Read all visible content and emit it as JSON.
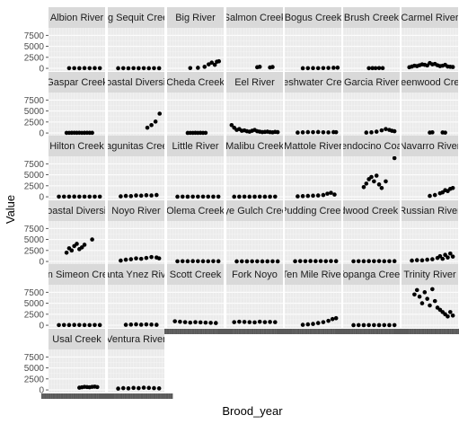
{
  "chart_data": {
    "type": "scatter",
    "facet_layout": "facet_wrap",
    "xlabel": "Brood_year",
    "ylabel": "Value",
    "y_ticks": [
      0,
      2500,
      5000,
      7500
    ],
    "ylim": [
      -600,
      9200
    ],
    "x_tick_labels_legible": false,
    "grid": true,
    "panels": [
      {
        "strip": "Albion River",
        "x": [
          0.35,
          0.45,
          0.55,
          0.65,
          0.75,
          0.85,
          0.95
        ],
        "y": [
          30,
          40,
          25,
          50,
          35,
          45,
          30
        ]
      },
      {
        "strip": "Big Sequit Creek",
        "x": [
          0.15,
          0.25,
          0.35,
          0.45,
          0.55,
          0.65,
          0.75,
          0.85,
          0.95
        ],
        "y": [
          20,
          30,
          15,
          40,
          25,
          35,
          20,
          30,
          25
        ]
      },
      {
        "strip": "Big River",
        "x": [
          0.4,
          0.55,
          0.68,
          0.76,
          0.82,
          0.88,
          0.92,
          0.96
        ],
        "y": [
          60,
          120,
          350,
          900,
          1300,
          800,
          1500,
          1600
        ]
      },
      {
        "strip": "Salmon Creek",
        "x": [
          0.55,
          0.6,
          0.8,
          0.85
        ],
        "y": [
          250,
          350,
          200,
          300
        ]
      },
      {
        "strip": "Bogus Creek",
        "x": [
          0.3,
          0.4,
          0.5,
          0.6,
          0.7,
          0.8,
          0.9,
          0.98
        ],
        "y": [
          20,
          35,
          50,
          40,
          60,
          80,
          120,
          150
        ]
      },
      {
        "strip": "Brush Creek",
        "x": [
          0.45,
          0.52,
          0.58,
          0.65,
          0.72
        ],
        "y": [
          30,
          50,
          40,
          60,
          45
        ]
      },
      {
        "strip": "Carmel River",
        "x": [
          0.1,
          0.15,
          0.2,
          0.25,
          0.3,
          0.35,
          0.4,
          0.45,
          0.5,
          0.55,
          0.6,
          0.65,
          0.7,
          0.75,
          0.8,
          0.85,
          0.9,
          0.95
        ],
        "y": [
          250,
          400,
          600,
          500,
          700,
          900,
          800,
          650,
          1200,
          900,
          1000,
          700,
          500,
          600,
          800,
          400,
          350,
          300
        ]
      },
      {
        "strip": "Gaspar Creek",
        "x": [
          0.3,
          0.35,
          0.4,
          0.45,
          0.5,
          0.55,
          0.6,
          0.65,
          0.7,
          0.75,
          0.8
        ],
        "y": [
          30,
          40,
          50,
          60,
          45,
          55,
          40,
          50,
          60,
          45,
          50
        ]
      },
      {
        "strip": "Coastal Diversity",
        "x": [
          0.72,
          0.8,
          0.88,
          0.96
        ],
        "y": [
          1200,
          1800,
          2600,
          4400
        ]
      },
      {
        "strip": "Cheda Creek",
        "x": [
          0.35,
          0.4,
          0.45,
          0.5,
          0.55,
          0.6,
          0.65,
          0.7
        ],
        "y": [
          20,
          40,
          30,
          50,
          35,
          45,
          30,
          40
        ]
      },
      {
        "strip": "Eel River",
        "x": [
          0.05,
          0.1,
          0.15,
          0.2,
          0.25,
          0.3,
          0.35,
          0.4,
          0.45,
          0.5,
          0.55,
          0.6,
          0.65,
          0.7,
          0.75,
          0.8,
          0.85,
          0.9,
          0.95
        ],
        "y": [
          1800,
          1200,
          700,
          900,
          500,
          600,
          400,
          300,
          500,
          700,
          400,
          300,
          200,
          250,
          300,
          200,
          150,
          250,
          200
        ]
      },
      {
        "strip": "Freshwater Creek",
        "x": [
          0.2,
          0.3,
          0.4,
          0.5,
          0.6,
          0.7,
          0.8,
          0.9,
          0.95
        ],
        "y": [
          100,
          150,
          200,
          180,
          220,
          160,
          140,
          200,
          180
        ]
      },
      {
        "strip": "Garcia River",
        "x": [
          0.4,
          0.5,
          0.6,
          0.7,
          0.78,
          0.85,
          0.9,
          0.95
        ],
        "y": [
          100,
          150,
          300,
          600,
          900,
          700,
          500,
          400
        ]
      },
      {
        "strip": "Greenwood Creek",
        "x": [
          0.5,
          0.55,
          0.75,
          0.8
        ],
        "y": [
          100,
          150,
          120,
          80
        ]
      },
      {
        "strip": "Hilton Creek",
        "x": [
          0.15,
          0.25,
          0.35,
          0.45,
          0.55,
          0.65,
          0.75,
          0.85,
          0.95
        ],
        "y": [
          30,
          40,
          35,
          45,
          30,
          40,
          35,
          30,
          40
        ]
      },
      {
        "strip": "Pagunitas Creek",
        "x": [
          0.2,
          0.3,
          0.4,
          0.5,
          0.6,
          0.7,
          0.8,
          0.9
        ],
        "y": [
          100,
          200,
          150,
          300,
          250,
          350,
          300,
          400
        ]
      },
      {
        "strip": "Little River",
        "x": [
          0.15,
          0.25,
          0.35,
          0.45,
          0.55,
          0.65,
          0.75,
          0.85,
          0.95
        ],
        "y": [
          20,
          30,
          25,
          35,
          30,
          40,
          30,
          25,
          35
        ]
      },
      {
        "strip": "Malibu Creek",
        "x": [
          0.1,
          0.2,
          0.3,
          0.4,
          0.5,
          0.6,
          0.7,
          0.8,
          0.9
        ],
        "y": [
          20,
          25,
          30,
          20,
          25,
          30,
          20,
          25,
          30
        ]
      },
      {
        "strip": "Mattole River",
        "x": [
          0.2,
          0.3,
          0.4,
          0.5,
          0.6,
          0.7,
          0.78,
          0.85,
          0.92
        ],
        "y": [
          100,
          150,
          200,
          250,
          300,
          400,
          700,
          900,
          500
        ]
      },
      {
        "strip": "Mendocino Coast",
        "x": [
          0.35,
          0.4,
          0.45,
          0.5,
          0.55,
          0.6,
          0.65,
          0.7,
          0.78,
          0.95
        ],
        "y": [
          2200,
          3000,
          4000,
          4500,
          3500,
          4800,
          2800,
          2000,
          3500,
          8800
        ]
      },
      {
        "strip": "Navarro River",
        "x": [
          0.5,
          0.6,
          0.7,
          0.75,
          0.8,
          0.85,
          0.9,
          0.95
        ],
        "y": [
          200,
          400,
          800,
          1000,
          1500,
          1300,
          1800,
          2000
        ]
      },
      {
        "strip": "Coastal Diversity",
        "x": [
          0.3,
          0.35,
          0.4,
          0.45,
          0.5,
          0.55,
          0.6,
          0.65,
          0.8
        ],
        "y": [
          2000,
          3000,
          2500,
          3500,
          4000,
          2800,
          3200,
          3800,
          5000
        ]
      },
      {
        "strip": "Noyo River",
        "x": [
          0.2,
          0.3,
          0.4,
          0.5,
          0.6,
          0.7,
          0.8,
          0.9,
          0.95
        ],
        "y": [
          200,
          400,
          500,
          700,
          600,
          800,
          1000,
          900,
          700
        ]
      },
      {
        "strip": "Olema Creek",
        "x": [
          0.15,
          0.25,
          0.35,
          0.45,
          0.55,
          0.65,
          0.75,
          0.85,
          0.95
        ],
        "y": [
          40,
          60,
          50,
          70,
          60,
          50,
          40,
          60,
          50
        ]
      },
      {
        "strip": "Dye Gulch Creek",
        "x": [
          0.15,
          0.25,
          0.35,
          0.45,
          0.55,
          0.65,
          0.75,
          0.85,
          0.95
        ],
        "y": [
          20,
          30,
          25,
          35,
          30,
          20,
          25,
          30,
          20
        ]
      },
      {
        "strip": "Pudding Creek",
        "x": [
          0.15,
          0.25,
          0.35,
          0.45,
          0.55,
          0.65,
          0.75,
          0.85,
          0.95
        ],
        "y": [
          50,
          80,
          60,
          100,
          70,
          90,
          60,
          80,
          70
        ]
      },
      {
        "strip": "Redwood Creek (M)",
        "x": [
          0.15,
          0.25,
          0.35,
          0.45,
          0.55,
          0.65,
          0.75,
          0.85,
          0.95
        ],
        "y": [
          40,
          60,
          50,
          70,
          60,
          80,
          50,
          60,
          70
        ]
      },
      {
        "strip": "Russian River",
        "x": [
          0.15,
          0.25,
          0.35,
          0.45,
          0.55,
          0.65,
          0.7,
          0.75,
          0.8,
          0.85,
          0.9,
          0.95
        ],
        "y": [
          200,
          300,
          250,
          400,
          500,
          800,
          1200,
          600,
          1500,
          900,
          1800,
          1100
        ]
      },
      {
        "strip": "San Simeon Creek",
        "x": [
          0.15,
          0.25,
          0.35,
          0.45,
          0.55,
          0.65,
          0.75,
          0.85,
          0.95
        ],
        "y": [
          40,
          60,
          50,
          70,
          60,
          50,
          40,
          60,
          50
        ]
      },
      {
        "strip": "Santa Ynez River",
        "x": [
          0.3,
          0.4,
          0.5,
          0.6,
          0.7,
          0.8,
          0.9
        ],
        "y": [
          100,
          150,
          200,
          120,
          180,
          150,
          100
        ]
      },
      {
        "strip": "Scott Creek",
        "x": [
          0.1,
          0.2,
          0.3,
          0.4,
          0.5,
          0.6,
          0.7,
          0.8,
          0.9
        ],
        "y": [
          900,
          800,
          700,
          600,
          700,
          650,
          600,
          550,
          500
        ]
      },
      {
        "strip": "Fork Noyo",
        "x": [
          0.1,
          0.2,
          0.3,
          0.4,
          0.5,
          0.6,
          0.7,
          0.8,
          0.9
        ],
        "y": [
          700,
          800,
          750,
          700,
          650,
          800,
          700,
          750,
          700
        ]
      },
      {
        "strip": "Ten Mile River",
        "x": [
          0.3,
          0.4,
          0.5,
          0.6,
          0.7,
          0.8,
          0.88,
          0.95
        ],
        "y": [
          100,
          200,
          300,
          500,
          700,
          1000,
          1400,
          1600
        ]
      },
      {
        "strip": "Topanga Creek",
        "x": [
          0.15,
          0.25,
          0.35,
          0.45,
          0.55,
          0.65,
          0.75,
          0.85,
          0.95
        ],
        "y": [
          20,
          30,
          25,
          35,
          30,
          25,
          30,
          25,
          30
        ]
      },
      {
        "strip": "Trinity River",
        "x": [
          0.2,
          0.25,
          0.3,
          0.35,
          0.4,
          0.45,
          0.5,
          0.55,
          0.6,
          0.65,
          0.7,
          0.75,
          0.8,
          0.85,
          0.9,
          0.95
        ],
        "y": [
          7000,
          8000,
          6500,
          5000,
          7500,
          6000,
          4500,
          8200,
          5500,
          4000,
          3500,
          3000,
          2500,
          2000,
          3000,
          2200
        ]
      },
      {
        "strip": "Usal Creek",
        "x": [
          0.55,
          0.6,
          0.65,
          0.7,
          0.75,
          0.8,
          0.85,
          0.9
        ],
        "y": [
          500,
          600,
          700,
          650,
          600,
          700,
          750,
          650
        ]
      },
      {
        "strip": "Ventura River",
        "x": [
          0.15,
          0.25,
          0.35,
          0.45,
          0.55,
          0.65,
          0.75,
          0.85,
          0.95
        ],
        "y": [
          300,
          400,
          350,
          450,
          400,
          500,
          450,
          400,
          350
        ]
      }
    ]
  }
}
